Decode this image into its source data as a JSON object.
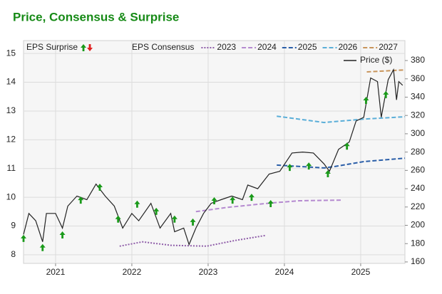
{
  "chart_data": {
    "type": "line",
    "title": "Price, Consensus & Surprise",
    "xlim": [
      2020.58,
      2025.58
    ],
    "xticks": [
      2021,
      2022,
      2023,
      2024,
      2025
    ],
    "ylim": [
      7.7,
      15.45
    ],
    "yticks": [
      8,
      9,
      10,
      11,
      12,
      13,
      14,
      15
    ],
    "y2lim": [
      158.4,
      401.8
    ],
    "y2ticks": [
      160,
      180,
      200,
      220,
      240,
      260,
      280,
      300,
      320,
      340,
      360,
      380
    ],
    "grid": true,
    "surprise": {
      "name": "EPS Surprise",
      "up_color": "#1a9a1a",
      "down_color": "#e02020",
      "x": [
        2020.58,
        2020.83,
        2021.09,
        2021.33,
        2021.58,
        2021.82,
        2022.07,
        2022.32,
        2022.56,
        2022.8,
        2023.08,
        2023.32,
        2023.57,
        2023.82,
        2024.07,
        2024.32,
        2024.57,
        2024.82,
        2025.07,
        2025.33
      ],
      "values": [
        8.57,
        8.25,
        8.69,
        9.9,
        10.35,
        9.24,
        9.76,
        9.51,
        9.24,
        9.14,
        9.88,
        9.9,
        10.0,
        9.78,
        11.04,
        11.09,
        10.82,
        11.78,
        13.37,
        13.57
      ]
    },
    "consensus_label": "EPS Consensus",
    "series": [
      {
        "name": "2023",
        "color": "#8e5ca8",
        "dash": "dotted",
        "x": [
          2021.84,
          2022.14,
          2022.51,
          2022.98,
          2023.36,
          2023.75
        ],
        "values": [
          8.3,
          8.45,
          8.33,
          8.3,
          8.5,
          8.67
        ]
      },
      {
        "name": "2024",
        "color": "#b58ad0",
        "dash": "dashed",
        "x": [
          2022.84,
          2023.26,
          2023.82,
          2024.2,
          2024.76
        ],
        "values": [
          9.5,
          9.65,
          9.8,
          9.88,
          9.9
        ]
      },
      {
        "name": "2025",
        "color": "#2a5ea8",
        "dash": "dashed",
        "x": [
          2023.9,
          2024.52,
          2024.66,
          2025.04,
          2025.58
        ],
        "values": [
          11.12,
          11.02,
          11.07,
          11.24,
          11.36
        ]
      },
      {
        "name": "2026",
        "color": "#5aaed8",
        "dash": "dashed",
        "x": [
          2023.9,
          2024.52,
          2025.04,
          2025.58
        ],
        "values": [
          12.82,
          12.6,
          12.72,
          12.8
        ]
      },
      {
        "name": "2027",
        "color": "#c8945a",
        "dash": "dashed",
        "x": [
          2025.08,
          2025.58
        ],
        "values": [
          14.36,
          14.43
        ]
      },
      {
        "name": "Price ($)",
        "color": "#222222",
        "dash": "solid",
        "axis": "y2",
        "x": [
          2020.58,
          2020.65,
          2020.74,
          2020.83,
          2020.88,
          2021.0,
          2021.09,
          2021.16,
          2021.28,
          2021.41,
          2021.53,
          2021.65,
          2021.77,
          2021.88,
          2022.0,
          2022.09,
          2022.25,
          2022.37,
          2022.51,
          2022.56,
          2022.68,
          2022.75,
          2022.84,
          2022.94,
          2023.04,
          2023.17,
          2023.31,
          2023.45,
          2023.52,
          2023.65,
          2023.8,
          2023.94,
          2024.1,
          2024.24,
          2024.38,
          2024.52,
          2024.59,
          2024.71,
          2024.85,
          2024.94,
          2025.04,
          2025.13,
          2025.22,
          2025.27,
          2025.36,
          2025.43,
          2025.47,
          2025.5,
          2025.55
        ],
        "values": [
          190,
          213,
          205,
          182,
          213,
          213,
          197,
          221,
          232,
          228,
          245,
          232,
          221,
          197,
          213,
          205,
          224,
          197,
          213,
          193,
          197,
          179,
          197,
          213,
          224,
          228,
          232,
          228,
          244,
          240,
          256,
          259,
          279,
          280,
          279,
          267,
          259,
          283,
          291,
          314,
          318,
          361,
          357,
          318,
          359,
          370,
          337,
          357,
          353
        ]
      }
    ]
  }
}
